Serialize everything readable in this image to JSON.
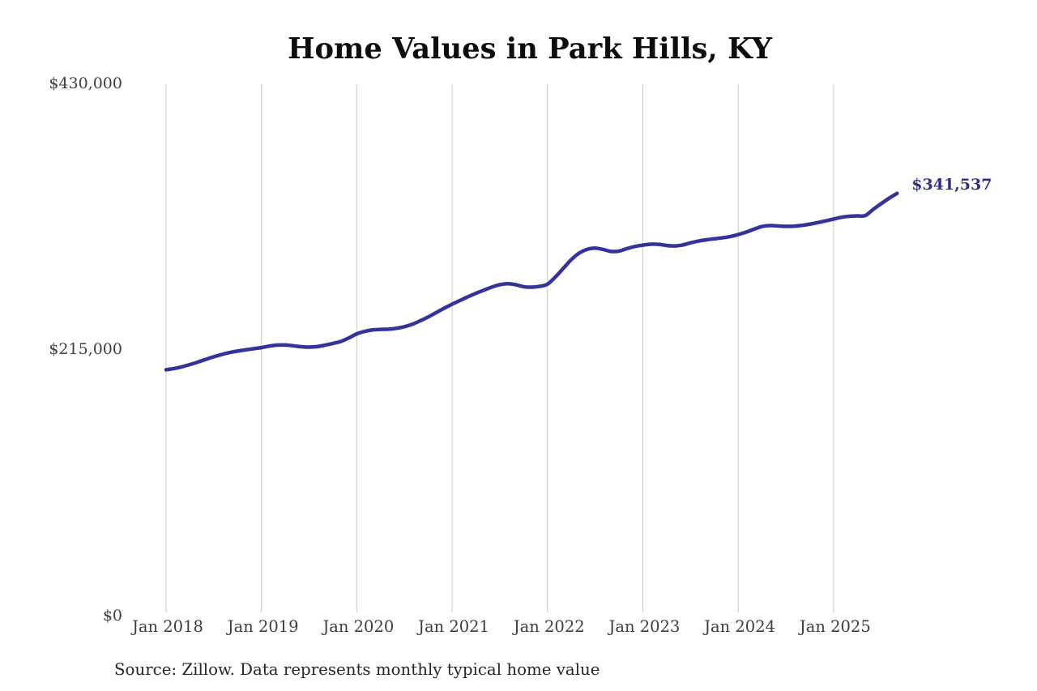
{
  "chart_data": {
    "type": "line",
    "title": "Home Values in Park Hills, KY",
    "source_note": "Source: Zillow. Data represents monthly typical home value",
    "end_label": "$341,537",
    "legend": "none",
    "grid": "vertical-only",
    "ylim": [
      0,
      430000
    ],
    "y_ticks": [
      {
        "value": 0,
        "label": "$0"
      },
      {
        "value": 215000,
        "label": "$215,000"
      },
      {
        "value": 430000,
        "label": "$430,000"
      }
    ],
    "x_ticks": [
      {
        "month": "2018-01",
        "label": "Jan 2018"
      },
      {
        "month": "2019-01",
        "label": "Jan 2019"
      },
      {
        "month": "2020-01",
        "label": "Jan 2020"
      },
      {
        "month": "2021-01",
        "label": "Jan 2021"
      },
      {
        "month": "2022-01",
        "label": "Jan 2022"
      },
      {
        "month": "2023-01",
        "label": "Jan 2023"
      },
      {
        "month": "2024-01",
        "label": "Jan 2024"
      },
      {
        "month": "2025-01",
        "label": "Jan 2025"
      }
    ],
    "series": [
      {
        "name": "Typical home value",
        "x_start": "2018-01",
        "x_step_months": 1,
        "values": [
          199000,
          200000,
          201400,
          203200,
          205200,
          207400,
          209500,
          211300,
          212900,
          214100,
          215100,
          216000,
          216900,
          218100,
          218900,
          219000,
          218400,
          217600,
          217300,
          217700,
          218900,
          220300,
          221900,
          224700,
          228000,
          230000,
          231200,
          231600,
          231800,
          232500,
          233800,
          235800,
          238600,
          241700,
          245200,
          248700,
          252000,
          255000,
          258000,
          260800,
          263300,
          265800,
          267700,
          268500,
          267700,
          266100,
          265700,
          266400,
          268100,
          274000,
          281000,
          288000,
          293300,
          296300,
          297300,
          296200,
          294600,
          294900,
          296900,
          298600,
          299700,
          300400,
          300300,
          299400,
          299000,
          299800,
          301500,
          303000,
          304000,
          304800,
          305600,
          306600,
          308200,
          310200,
          312600,
          314800,
          315500,
          315200,
          314900,
          315000,
          315600,
          316600,
          317900,
          319300,
          320700,
          322200,
          323000,
          323300,
          323600,
          328600,
          333200,
          337600,
          341537
        ]
      }
    ],
    "colors": {
      "line": "#33339b",
      "end_label": "#2e2e8b",
      "grid": "#c8c8c8",
      "tick_label": "#3d3d3d",
      "title": "#0d0d0d",
      "source_note": "#262626",
      "background": "#ffffff"
    }
  }
}
